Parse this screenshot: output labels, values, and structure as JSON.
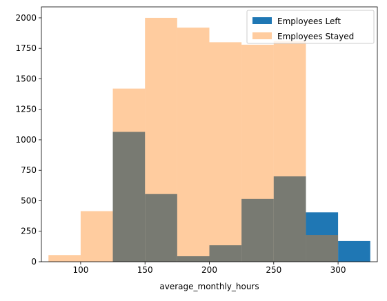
{
  "chart_data": {
    "type": "bar",
    "title": "",
    "xlabel": "average_monthly_hours",
    "ylabel": "",
    "xlim": [
      69.5,
      330.5
    ],
    "ylim": [
      0,
      2090
    ],
    "grid": false,
    "legend_position": "top-right",
    "x_ticks": [
      100,
      150,
      200,
      250,
      300
    ],
    "y_ticks": [
      0,
      250,
      500,
      750,
      1000,
      1250,
      1500,
      1750,
      2000
    ],
    "series": [
      {
        "name": "Employees Left",
        "color": "#1f77b4",
        "alpha": 1,
        "bin_edges": [
          125,
          150,
          175,
          200,
          225,
          250,
          275,
          300,
          325
        ],
        "values": [
          1065,
          555,
          45,
          135,
          515,
          700,
          405,
          170
        ]
      },
      {
        "name": "Employees Stayed",
        "color": "#ff7f0e",
        "alpha": 0.4,
        "bin_edges": [
          75,
          100,
          125,
          150,
          175,
          200,
          225,
          250,
          275,
          300
        ],
        "values": [
          55,
          415,
          1420,
          2000,
          1920,
          1800,
          1780,
          1810,
          220
        ]
      }
    ]
  }
}
